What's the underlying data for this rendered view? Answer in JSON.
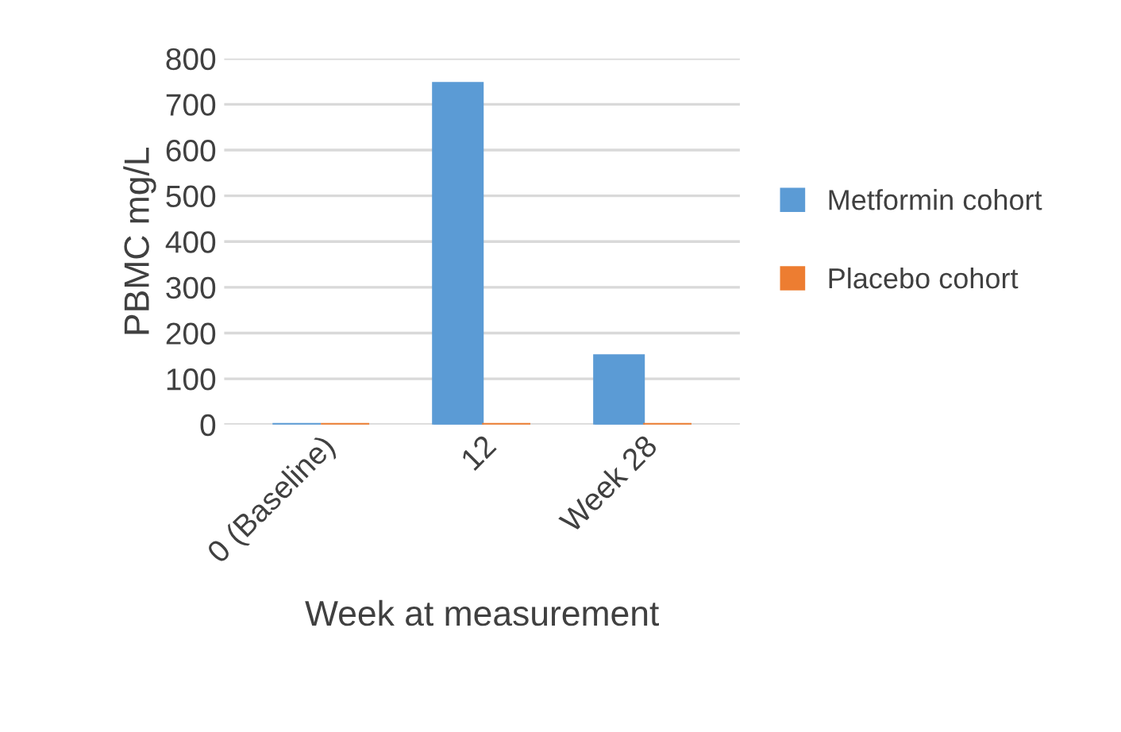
{
  "chart_data": {
    "type": "bar",
    "xlabel": "Week at measurement",
    "ylabel": "PBMC mg/L",
    "categories": [
      "0 (Baseline)",
      "12",
      "Week 28"
    ],
    "series": [
      {
        "name": "Metformin cohort",
        "color": "#5b9bd5",
        "values": [
          0,
          745,
          150
        ]
      },
      {
        "name": "Placebo cohort",
        "color": "#ed7d31",
        "values": [
          0,
          0,
          0
        ]
      }
    ],
    "ylim": [
      0,
      800
    ],
    "yticks": [
      0,
      100,
      200,
      300,
      400,
      500,
      600,
      700,
      800
    ],
    "grid": "y",
    "legend": "right"
  }
}
